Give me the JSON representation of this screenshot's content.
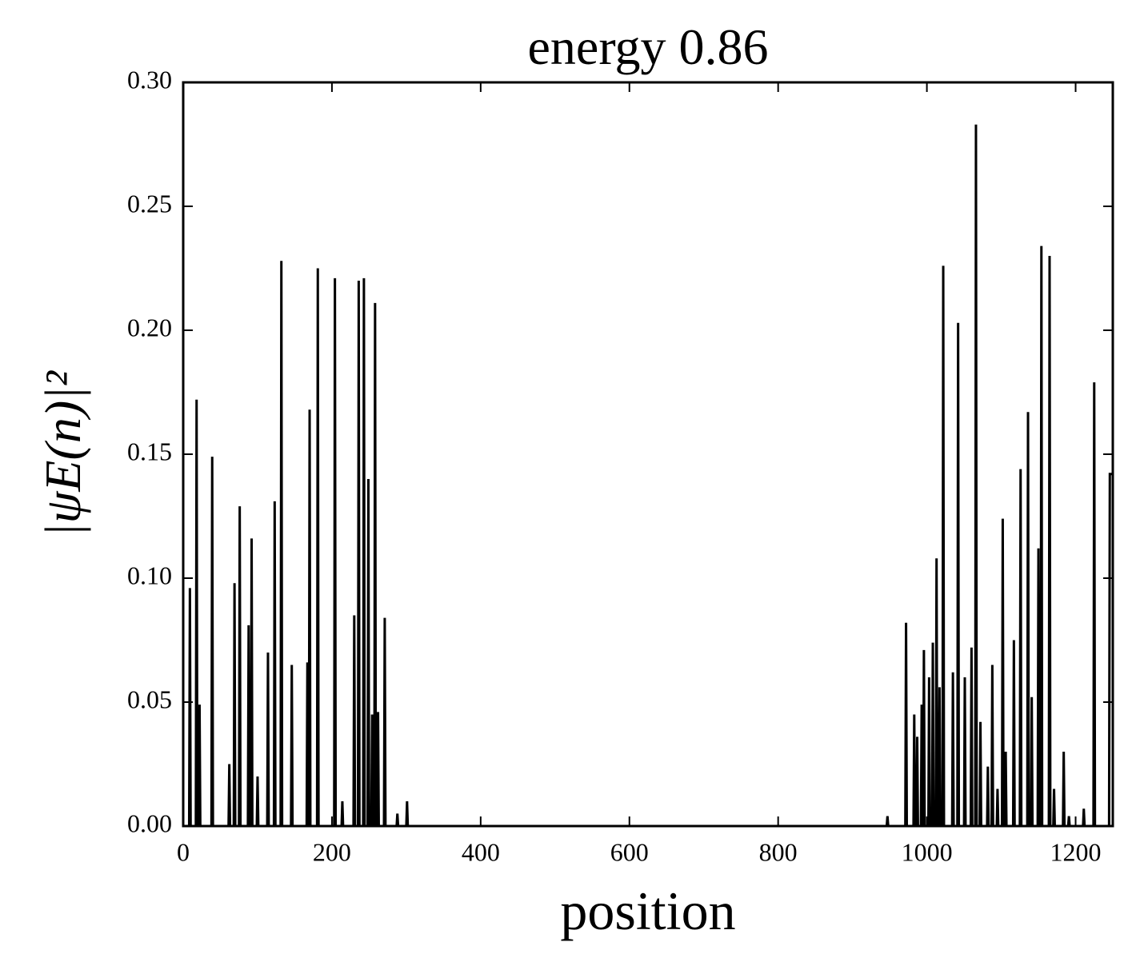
{
  "chart_data": {
    "type": "line",
    "title": "energy 0.86",
    "x_label": "position",
    "y_label": "|ψE(n)|²",
    "series": [
      {
        "color": "#000000",
        "x": [
          0,
          8,
          9,
          10,
          17,
          18,
          19,
          21,
          22,
          23,
          38,
          39,
          40,
          61,
          62,
          63,
          68,
          69,
          70,
          75,
          76,
          77,
          87,
          88,
          89,
          91,
          92,
          93,
          99,
          100,
          101,
          113,
          114,
          115,
          122,
          123,
          124,
          131,
          132,
          133,
          145,
          146,
          147,
          166,
          167,
          168,
          169,
          170,
          171,
          180,
          181,
          182,
          203,
          204,
          205,
          213,
          214,
          215,
          229,
          230,
          231,
          235,
          236,
          237,
          242,
          243,
          244,
          248,
          249,
          250,
          253,
          254,
          255,
          257,
          258,
          259,
          261,
          262,
          263,
          270,
          271,
          272,
          287,
          288,
          289,
          300,
          301,
          302,
          946,
          947,
          948,
          971,
          972,
          973,
          982,
          983,
          984,
          986,
          987,
          988,
          992,
          993,
          994,
          995,
          996,
          997,
          1002,
          1003,
          1004,
          1007,
          1008,
          1009,
          1012,
          1013,
          1014,
          1016,
          1017,
          1018,
          1021,
          1022,
          1023,
          1034,
          1035,
          1036,
          1041,
          1042,
          1043,
          1050,
          1051,
          1052,
          1059,
          1060,
          1061,
          1065,
          1066,
          1067,
          1071,
          1072,
          1073,
          1081,
          1082,
          1083,
          1087,
          1088,
          1089,
          1094,
          1095,
          1096,
          1101,
          1102,
          1103,
          1105,
          1106,
          1107,
          1116,
          1117,
          1118,
          1125,
          1126,
          1127,
          1135,
          1136,
          1137,
          1140,
          1141,
          1142,
          1149,
          1150,
          1151,
          1153,
          1154,
          1155,
          1164,
          1165,
          1166,
          1170,
          1171,
          1172,
          1183,
          1184,
          1185,
          1190,
          1191,
          1192,
          1210,
          1211,
          1212,
          1224,
          1225,
          1226,
          1245,
          1246,
          1249
        ],
        "values": [
          0,
          0,
          0.096,
          0,
          0,
          0.172,
          0,
          0,
          0.049,
          0,
          0,
          0.149,
          0,
          0,
          0.025,
          0,
          0,
          0.098,
          0,
          0,
          0.129,
          0,
          0,
          0.081,
          0,
          0,
          0.116,
          0,
          0,
          0.02,
          0,
          0,
          0.07,
          0,
          0,
          0.131,
          0,
          0,
          0.228,
          0,
          0,
          0.065,
          0,
          0,
          0.066,
          0,
          0,
          0.168,
          0,
          0,
          0.225,
          0,
          0,
          0.221,
          0,
          0,
          0.01,
          0,
          0,
          0.085,
          0,
          0,
          0.22,
          0,
          0,
          0.221,
          0,
          0,
          0.14,
          0,
          0,
          0.045,
          0,
          0,
          0.211,
          0,
          0,
          0.046,
          0,
          0,
          0.084,
          0,
          0,
          0.005,
          0,
          0,
          0.01,
          0,
          0,
          0.004,
          0,
          0,
          0.082,
          0,
          0,
          0.045,
          0,
          0,
          0.036,
          0,
          0,
          0.049,
          0,
          0,
          0.071,
          0,
          0,
          0.06,
          0,
          0,
          0.074,
          0,
          0,
          0.108,
          0,
          0,
          0.056,
          0,
          0,
          0.226,
          0,
          0,
          0.062,
          0,
          0,
          0.203,
          0,
          0,
          0.06,
          0,
          0,
          0.072,
          0,
          0,
          0.283,
          0,
          0,
          0.042,
          0,
          0,
          0.024,
          0,
          0,
          0.065,
          0,
          0,
          0.015,
          0,
          0,
          0.124,
          0,
          0,
          0.03,
          0,
          0,
          0.075,
          0,
          0,
          0.144,
          0,
          0,
          0.167,
          0,
          0,
          0.052,
          0,
          0,
          0.112,
          0,
          0,
          0.234,
          0,
          0,
          0.23,
          0,
          0,
          0.015,
          0,
          0,
          0.03,
          0,
          0,
          0.004,
          0,
          0,
          0.007,
          0,
          0,
          0.179,
          0,
          0,
          0.142,
          0.142
        ]
      }
    ],
    "xlim": [
      0,
      1250
    ],
    "xticks": [
      0,
      200,
      400,
      600,
      800,
      1000,
      1200
    ],
    "ylim": [
      0,
      0.3
    ],
    "yticks": [
      {
        "value": 0,
        "label": "0.00"
      },
      {
        "value": 0.05,
        "label": "0.05"
      },
      {
        "value": 0.1,
        "label": "0.10"
      },
      {
        "value": 0.15,
        "label": "0.15"
      },
      {
        "value": 0.2,
        "label": "0.20"
      },
      {
        "value": 0.25,
        "label": "0.25"
      },
      {
        "value": 0.3,
        "label": "0.30"
      }
    ]
  }
}
